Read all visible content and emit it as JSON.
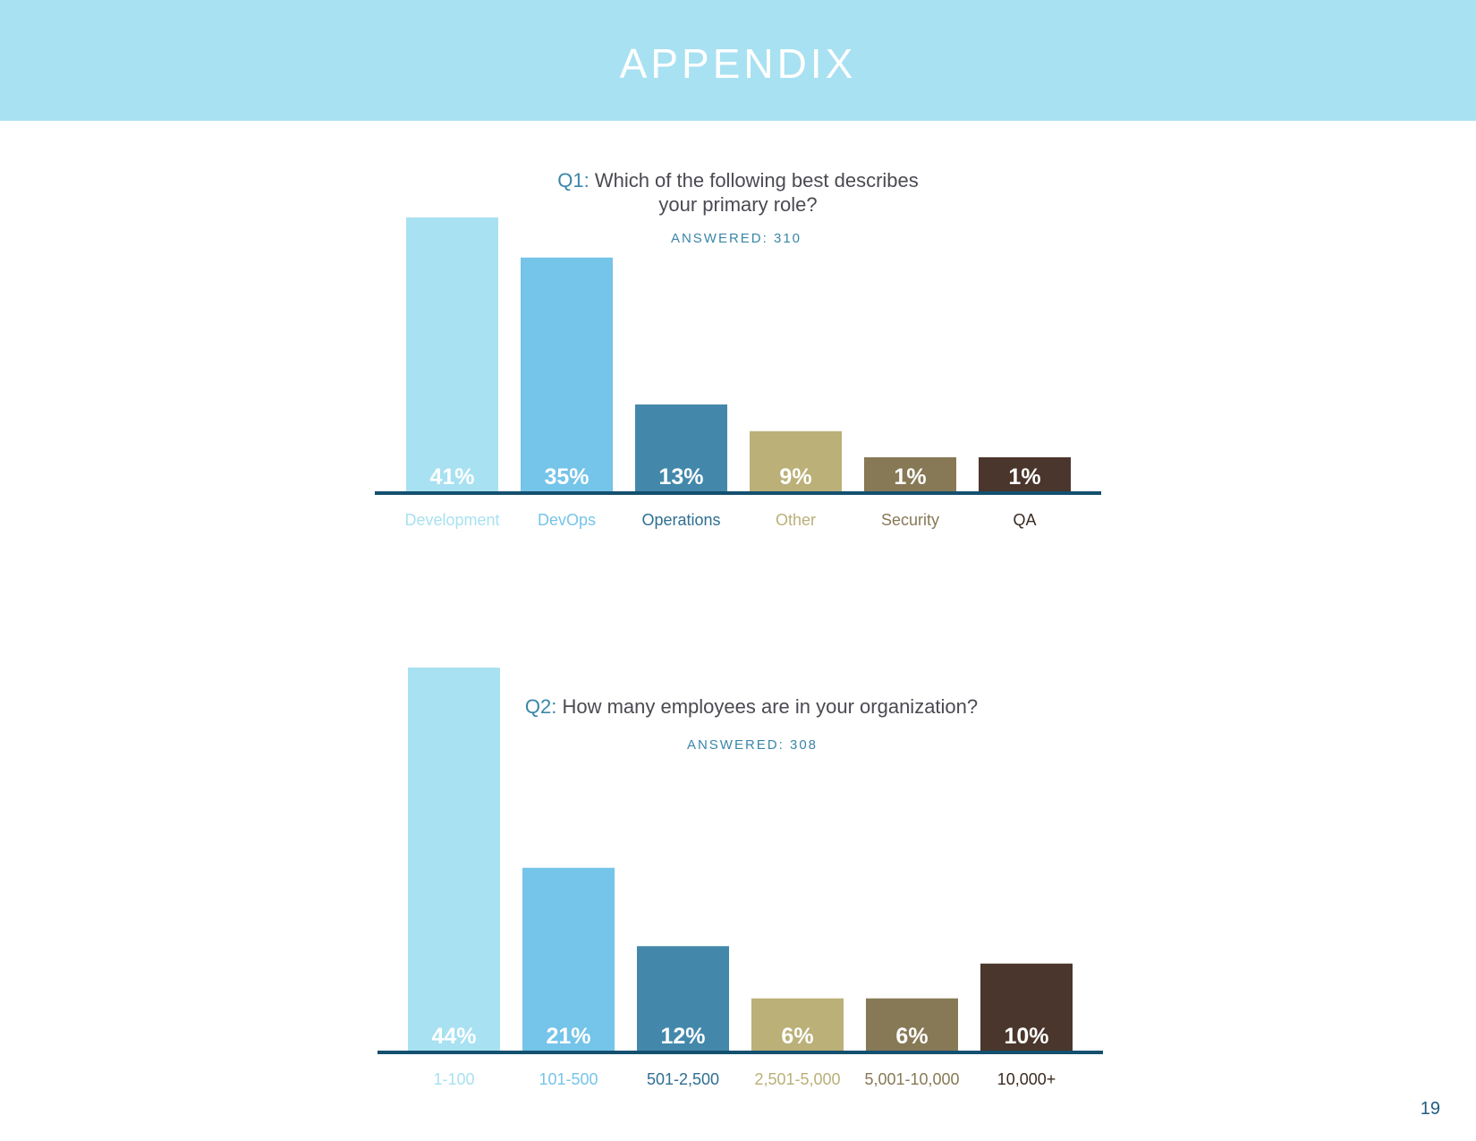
{
  "header": {
    "title": "APPENDIX"
  },
  "page_number": "19",
  "colors": {
    "banner": "#a8e1f1",
    "axis": "#14506f",
    "accent": "#3a86a8"
  },
  "chart_data": [
    {
      "type": "bar",
      "question_prefix": "Q1:",
      "title_lines": [
        "Which of the following best describes",
        "your primary role?"
      ],
      "answered": "ANSWERED: 310",
      "categories": [
        "Development",
        "DevOps",
        "Operations",
        "Other",
        "Security",
        "QA"
      ],
      "values": [
        41,
        35,
        13,
        9,
        1,
        1
      ],
      "value_labels": [
        "41%",
        "35%",
        "13%",
        "9%",
        "1%",
        "1%"
      ],
      "bar_colors": [
        "#a8e1f1",
        "#75c4e9",
        "#4388ab",
        "#bab078",
        "#877956",
        "#4a362c"
      ],
      "label_colors": [
        "#a8e1f1",
        "#75c4e9",
        "#2e6f92",
        "#bab078",
        "#877956",
        "#3a2a22"
      ]
    },
    {
      "type": "bar",
      "question_prefix": "Q2:",
      "title_lines": [
        "How many employees are in your organization?"
      ],
      "answered": "ANSWERED: 308",
      "categories": [
        "1-100",
        "101-500",
        "501-2,500",
        "2,501-5,000",
        "5,001-10,000",
        "10,000+"
      ],
      "values": [
        44,
        21,
        12,
        6,
        6,
        10
      ],
      "value_labels": [
        "44%",
        "21%",
        "12%",
        "6%",
        "6%",
        "10%"
      ],
      "bar_colors": [
        "#a8e1f1",
        "#75c4e9",
        "#4388ab",
        "#bab078",
        "#877956",
        "#4a362c"
      ],
      "label_colors": [
        "#a8e1f1",
        "#75c4e9",
        "#2e6f92",
        "#bab078",
        "#877956",
        "#3a2a22"
      ]
    }
  ]
}
